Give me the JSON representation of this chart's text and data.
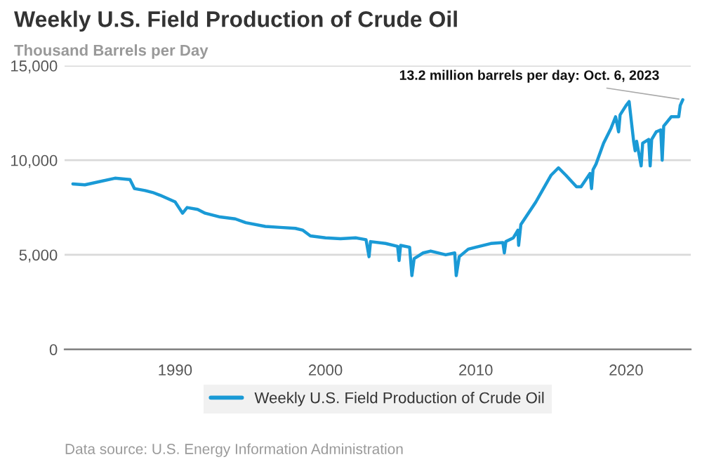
{
  "chart_data": {
    "type": "line",
    "title": "Weekly U.S. Field Production of Crude Oil",
    "ylabel": "Thousand Barrels per Day",
    "x": [
      1983.2,
      1984,
      1986,
      1987,
      1987.3,
      1988,
      1988.5,
      1989,
      1990,
      1990.5,
      1990.8,
      1991.5,
      1992,
      1993,
      1994,
      1994.7,
      1996,
      1997,
      1998,
      1998.5,
      1999,
      2000,
      2001,
      2002,
      2002.7,
      2002.9,
      2003,
      2004,
      2004.8,
      2004.9,
      2005,
      2005.6,
      2005.75,
      2005.9,
      2006.5,
      2007,
      2008,
      2008.6,
      2008.7,
      2008.9,
      2009.5,
      2010,
      2011,
      2011.8,
      2011.9,
      2012,
      2012.5,
      2012.8,
      2012.85,
      2013,
      2014,
      2014.5,
      2015,
      2015.5,
      2016,
      2016.7,
      2017,
      2017.6,
      2017.7,
      2017.8,
      2018,
      2018.5,
      2019,
      2019.3,
      2019.5,
      2019.6,
      2020,
      2020.2,
      2020.5,
      2020.6,
      2020.7,
      2021,
      2021.1,
      2021.5,
      2021.6,
      2021.7,
      2022,
      2022.3,
      2022.4,
      2022.5,
      2023,
      2023.5,
      2023.6,
      2023.77
    ],
    "series": [
      {
        "name": "Weekly U.S. Field Production of Crude Oil",
        "color": "#1a9ad6",
        "values": [
          8750,
          8700,
          9050,
          8980,
          8500,
          8400,
          8300,
          8150,
          7800,
          7200,
          7500,
          7400,
          7200,
          7000,
          6900,
          6700,
          6500,
          6450,
          6400,
          6300,
          6000,
          5900,
          5850,
          5900,
          5800,
          4900,
          5700,
          5600,
          5450,
          4700,
          5500,
          5400,
          3900,
          4800,
          5100,
          5200,
          5000,
          5100,
          3900,
          4900,
          5300,
          5400,
          5600,
          5650,
          5100,
          5700,
          5900,
          6300,
          5500,
          6600,
          7800,
          8500,
          9200,
          9600,
          9200,
          8600,
          8600,
          9300,
          8500,
          9500,
          9800,
          10900,
          11700,
          12300,
          11500,
          12400,
          12900,
          13100,
          11000,
          10500,
          11000,
          9700,
          10900,
          11100,
          9700,
          11100,
          11500,
          11600,
          10000,
          11800,
          12300,
          12300,
          12900,
          13200
        ]
      }
    ],
    "xlim": [
      1982.65,
      2024.3
    ],
    "xticks": [
      1990,
      2000,
      2010,
      2020
    ],
    "ylim": [
      0,
      15000
    ],
    "yticks": [
      0,
      {
        "value": 5000,
        "label": "5,000"
      },
      {
        "value": 10000,
        "label": "10,000"
      },
      {
        "value": 15000,
        "label": "15,000"
      }
    ],
    "grid": "y",
    "legend": "bottom",
    "line_style": "solid",
    "annotations": [
      {
        "text": "13.2 million barrels per day: Oct. 6, 2023",
        "x": 2023.77,
        "y": 13200
      },
      "Data source: U.S. Energy Information Administration"
    ]
  }
}
